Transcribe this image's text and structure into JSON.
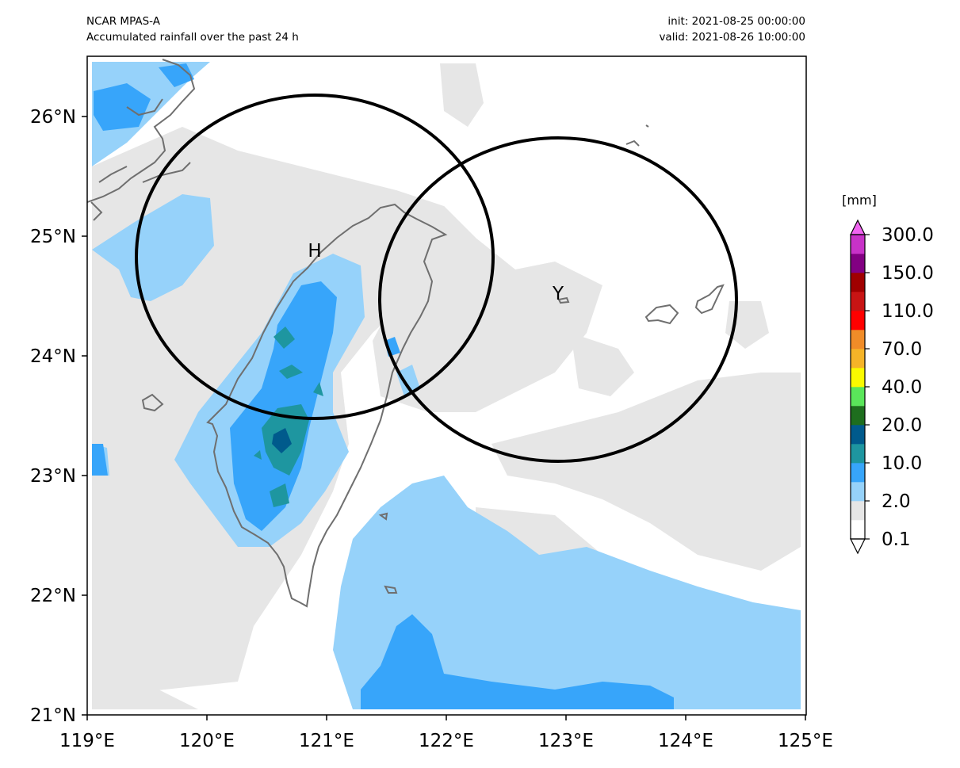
{
  "header": {
    "model": "NCAR MPAS-A",
    "field": "Accumulated rainfall over the past 24 h",
    "init": "init: 2021-08-25 00:00:00",
    "valid": "valid: 2021-08-26 10:00:00"
  },
  "map": {
    "lon_range": [
      119,
      125
    ],
    "lat_range": [
      21,
      26.5
    ],
    "x_ticks": [
      "119°E",
      "120°E",
      "121°E",
      "122°E",
      "123°E",
      "124°E",
      "125°E"
    ],
    "y_ticks": [
      "21°N",
      "22°N",
      "23°N",
      "24°N",
      "25°N",
      "26°N"
    ],
    "circles": [
      {
        "label": "H",
        "center_lon": 120.92,
        "center_lat": 24.83,
        "radius_deg": 1.5
      },
      {
        "label": "Y",
        "center_lon": 122.93,
        "center_lat": 24.47,
        "radius_deg": 1.5
      }
    ]
  },
  "colorbar": {
    "unit": "[mm]",
    "labels": [
      "0.1",
      "2.0",
      "10.0",
      "20.0",
      "40.0",
      "70.0",
      "110.0",
      "150.0",
      "300.0"
    ],
    "colors": [
      "#ffffff",
      "#e6e6e6",
      "#96d2fa",
      "#37a5fa",
      "#1e96a0",
      "#005a8c",
      "#1e6e1e",
      "#5ae65a",
      "#fafa00",
      "#f5b428",
      "#f08c28",
      "#ff0000",
      "#c81414",
      "#a00000",
      "#820082",
      "#c832c8"
    ],
    "extend_top_color": "#f064f0",
    "extend_bottom_color": "#ffffff"
  }
}
